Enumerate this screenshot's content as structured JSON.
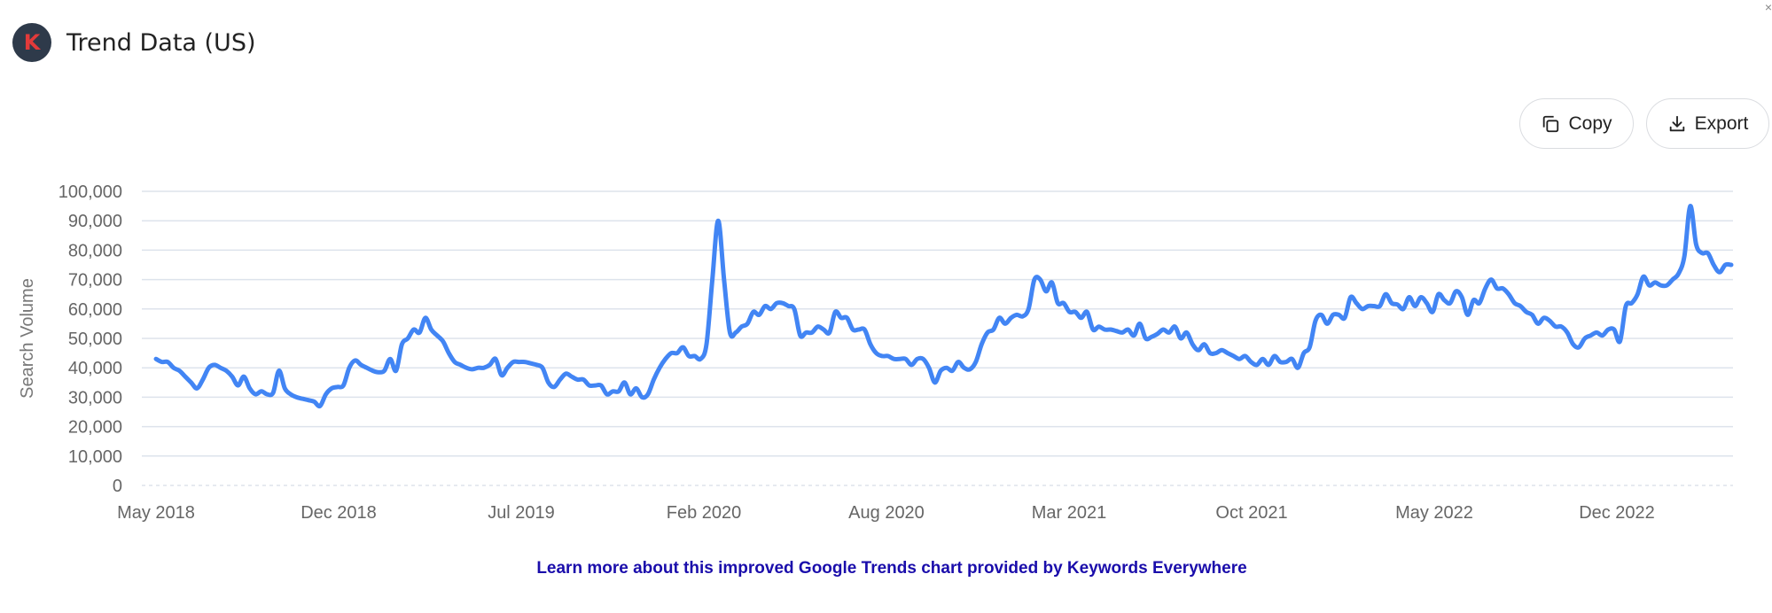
{
  "header": {
    "logo_letter": "K",
    "title": "Trend Data (US)"
  },
  "toolbar": {
    "copy_label": "Copy",
    "export_label": "Export",
    "copy_icon": "copy-icon",
    "export_icon": "download-icon"
  },
  "footer": {
    "link_text": "Learn more about this improved Google Trends chart provided by Keywords Everywhere"
  },
  "colors": {
    "line": "#4285f4",
    "grid": "#dde3ec",
    "axis_text": "#666666",
    "link": "#1a0dab"
  },
  "chart_data": {
    "type": "line",
    "title": "",
    "xlabel": "",
    "ylabel": "Search Volume",
    "ylim": [
      0,
      100000
    ],
    "yticks": [
      0,
      10000,
      20000,
      30000,
      40000,
      50000,
      60000,
      70000,
      80000,
      90000,
      100000
    ],
    "ytick_labels": [
      "0",
      "10,000",
      "20,000",
      "30,000",
      "40,000",
      "50,000",
      "60,000",
      "70,000",
      "80,000",
      "90,000",
      "100,000"
    ],
    "xtick_labels": [
      "May 2018",
      "Dec 2018",
      "Jul 2019",
      "Feb 2020",
      "Aug 2020",
      "Mar 2021",
      "Oct 2021",
      "May 2022",
      "Dec 2022"
    ],
    "grid": true,
    "legend": "none",
    "x_start": "2018-05",
    "series": [
      {
        "values": [
          43000,
          42000,
          42000,
          40000,
          39000,
          37000,
          35000,
          33000,
          36000,
          40000,
          41000,
          40000,
          39000,
          37000,
          34000,
          37000,
          33000,
          31000,
          32000,
          31000,
          31500,
          39000,
          33000,
          31000,
          30000,
          29500,
          29000,
          28500,
          27000,
          31000,
          33000,
          33500,
          34000,
          40000,
          42500,
          41000,
          40000,
          39000,
          38500,
          39000,
          43000,
          39000,
          48000,
          50000,
          53000,
          52000,
          57000,
          53000,
          51000,
          49000,
          45000,
          42000,
          41000,
          40000,
          39500,
          40000,
          40000,
          41000,
          43000,
          37500,
          40000,
          42000,
          42000,
          42000,
          41500,
          41000,
          40000,
          35000,
          33500,
          36000,
          38000,
          37000,
          36000,
          36000,
          34000,
          34000,
          34000,
          31000,
          32000,
          32000,
          35000,
          31000,
          33000,
          30000,
          31000,
          36000,
          40000,
          43000,
          45000,
          45000,
          47000,
          44000,
          44000,
          43000,
          48000,
          70000,
          90000,
          70000,
          52000,
          52000,
          54000,
          55000,
          59000,
          58000,
          61000,
          60000,
          62000,
          62000,
          61000,
          60000,
          51000,
          52000,
          52000,
          54000,
          53000,
          52000,
          59000,
          57000,
          57000,
          53000,
          53000,
          53000,
          48000,
          45000,
          44000,
          44000,
          43000,
          43000,
          43000,
          41000,
          43000,
          43000,
          40000,
          35000,
          39000,
          40000,
          39000,
          42000,
          40000,
          39500,
          42000,
          48000,
          52000,
          53000,
          57000,
          55000,
          57000,
          58000,
          57500,
          60000,
          70000,
          70000,
          66000,
          69000,
          62000,
          62000,
          59000,
          59000,
          57000,
          59000,
          53000,
          54000,
          53000,
          53000,
          52500,
          52000,
          53000,
          51000,
          55000,
          50000,
          50500,
          51500,
          53000,
          52000,
          54000,
          50000,
          52000,
          48000,
          46000,
          48000,
          45000,
          45000,
          46000,
          45000,
          44000,
          43000,
          44000,
          42000,
          41000,
          43000,
          41000,
          44000,
          42000,
          42000,
          43000,
          40000,
          45000,
          47000,
          56000,
          58000,
          55000,
          58000,
          58000,
          57000,
          64000,
          62000,
          60000,
          61000,
          61000,
          61000,
          65000,
          62000,
          61500,
          60000,
          64000,
          61000,
          64000,
          62000,
          59000,
          65000,
          63000,
          62000,
          66000,
          64000,
          58000,
          63000,
          62000,
          67000,
          70000,
          67000,
          67000,
          65000,
          62000,
          61000,
          59000,
          58000,
          55000,
          57000,
          56000,
          54000,
          54000,
          52000,
          48000,
          47000,
          50000,
          51000,
          52000,
          51000,
          53000,
          53000,
          49000,
          61000,
          62000,
          65000,
          71000,
          68000,
          69000,
          68000,
          68000,
          70000,
          72000,
          78000,
          95000,
          82000,
          79000,
          79000,
          75000,
          72500,
          75000,
          75000
        ]
      }
    ]
  }
}
